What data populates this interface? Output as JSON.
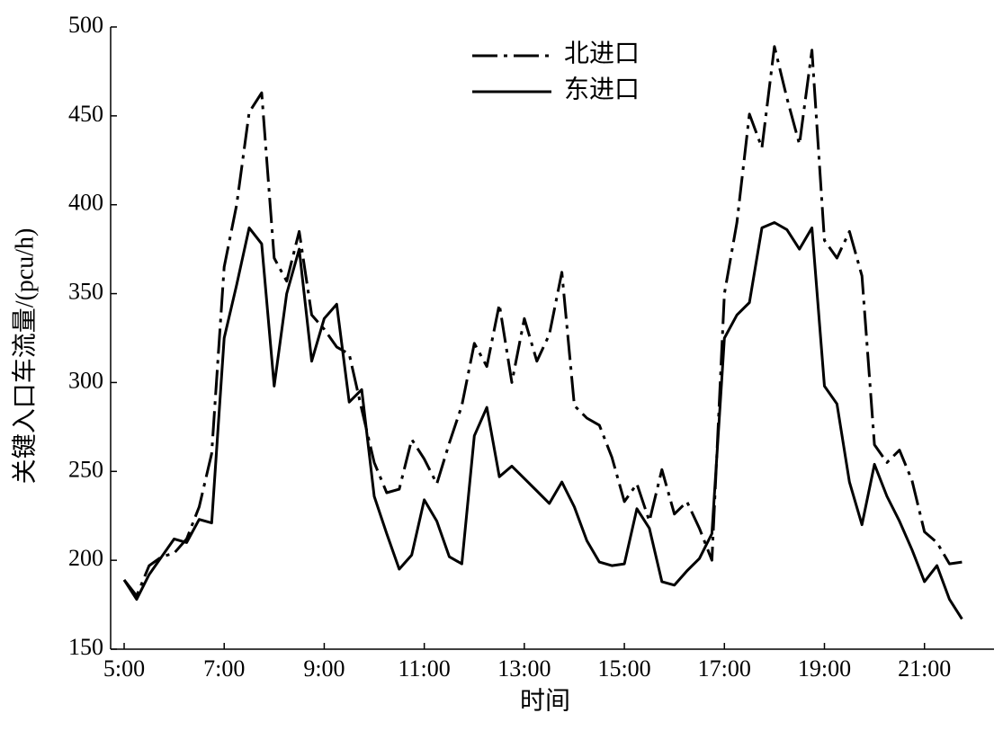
{
  "chart_data": {
    "type": "line",
    "xlabel": "时间",
    "ylabel": "关键入口车流量/(pcu/h)",
    "x": [
      5,
      5.25,
      5.5,
      5.75,
      6,
      6.25,
      6.5,
      6.75,
      7,
      7.25,
      7.5,
      7.75,
      8,
      8.25,
      8.5,
      8.75,
      9,
      9.25,
      9.5,
      9.75,
      10,
      10.25,
      10.5,
      10.75,
      11,
      11.25,
      11.5,
      11.75,
      12,
      12.25,
      12.5,
      12.75,
      13,
      13.25,
      13.5,
      13.75,
      14,
      14.25,
      14.5,
      14.75,
      15,
      15.25,
      15.5,
      15.75,
      16,
      16.25,
      16.5,
      16.75,
      17,
      17.25,
      17.5,
      17.75,
      18,
      18.25,
      18.5,
      18.75,
      19,
      19.25,
      19.5,
      19.75,
      20,
      20.25,
      20.5,
      20.75,
      21,
      21.25,
      21.5,
      21.75
    ],
    "series": [
      {
        "name": "北进口",
        "color": "#000000",
        "line_style": "dashdot",
        "values": [
          189,
          180,
          197,
          202,
          204,
          212,
          230,
          260,
          365,
          400,
          452,
          463,
          370,
          357,
          385,
          338,
          330,
          320,
          316,
          285,
          255,
          238,
          240,
          268,
          257,
          243,
          266,
          287,
          322,
          309,
          344,
          300,
          336,
          312,
          327,
          362,
          287,
          280,
          276,
          258,
          233,
          243,
          222,
          251,
          226,
          233,
          218,
          200,
          350,
          390,
          451,
          432,
          489,
          460,
          434,
          487,
          380,
          370,
          385,
          360,
          265,
          255,
          262,
          245,
          216,
          210,
          198,
          199
        ]
      },
      {
        "name": "东进口",
        "color": "#000000",
        "line_style": "solid",
        "values": [
          189,
          178,
          192,
          202,
          212,
          210,
          223,
          221,
          325,
          355,
          387,
          378,
          298,
          350,
          375,
          312,
          336,
          344,
          289,
          296,
          236,
          215,
          195,
          203,
          234,
          222,
          202,
          198,
          270,
          286,
          247,
          253,
          246,
          239,
          232,
          244,
          230,
          211,
          199,
          197,
          198,
          229,
          218,
          188,
          186,
          194,
          201,
          215,
          325,
          338,
          345,
          387,
          390,
          386,
          375,
          387,
          298,
          288,
          244,
          220,
          254,
          236,
          222,
          206,
          188,
          197,
          178,
          167
        ]
      }
    ],
    "xlim": [
      4.73,
      22.39
    ],
    "xticks": [
      {
        "value": 5,
        "label": "5:00"
      },
      {
        "value": 7,
        "label": "7:00"
      },
      {
        "value": 9,
        "label": "9:00"
      },
      {
        "value": 11,
        "label": "11:00"
      },
      {
        "value": 13,
        "label": "13:00"
      },
      {
        "value": 15,
        "label": "15:00"
      },
      {
        "value": 17,
        "label": "17:00"
      },
      {
        "value": 19,
        "label": "19:00"
      },
      {
        "value": 21,
        "label": "21:00"
      }
    ],
    "ylim": [
      150,
      500
    ],
    "yticks": [
      150,
      200,
      250,
      300,
      350,
      400,
      450,
      500
    ],
    "grid": false,
    "legend_position": "top"
  }
}
